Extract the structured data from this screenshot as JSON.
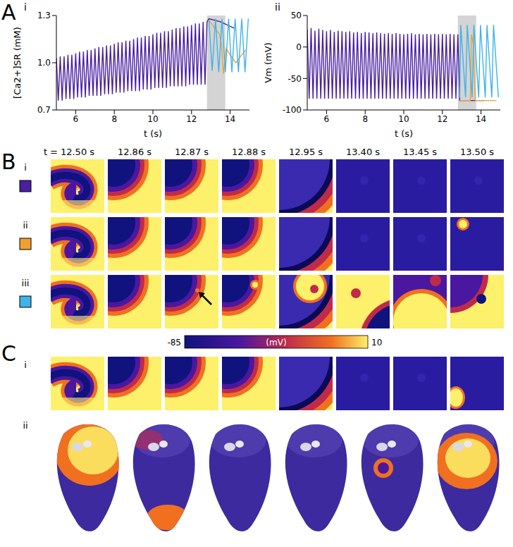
{
  "panel_letters": [
    "A",
    "B",
    "C"
  ],
  "chart_data": [
    {
      "label": "i",
      "type": "line",
      "xlabel": "t (s)",
      "ylabel": "[Ca2+]SR (mM)",
      "xlim": [
        5,
        15
      ],
      "xticks": [
        6,
        8,
        10,
        12,
        14
      ],
      "ylim": [
        0.7,
        1.3
      ],
      "yticks": [
        0.7,
        {
          "value": 1.0,
          "label": "1.0"
        },
        1.3
      ],
      "shaded_x": [
        12.8,
        13.75
      ],
      "series": [
        {
          "color": "#4a1fa0",
          "x": [
            5,
            5.1,
            5.2,
            5.3,
            5.4,
            5.5,
            5.6,
            5.7,
            5.8,
            5.9,
            6,
            6.1,
            6.2,
            6.3,
            6.4,
            6.5,
            6.6,
            6.7,
            6.8,
            6.9,
            7,
            7.1,
            7.2,
            7.3,
            7.4,
            7.5,
            7.6,
            7.7,
            7.8,
            7.9,
            8,
            8.1,
            8.2,
            8.3,
            8.4,
            8.5,
            8.6,
            8.7,
            8.8,
            8.9,
            9,
            9.1,
            9.2,
            9.3,
            9.4,
            9.5,
            9.6,
            9.7,
            9.8,
            9.9,
            10,
            10.1,
            10.2,
            10.3,
            10.4,
            10.5,
            10.6,
            10.7,
            10.8,
            10.9,
            11,
            11.1,
            11.2,
            11.3,
            11.4,
            11.5,
            11.6,
            11.7,
            11.8,
            11.9,
            12,
            12.1,
            12.2,
            12.3,
            12.4,
            12.5,
            12.6,
            12.7,
            12.8,
            12.9,
            13.5,
            14.2
          ],
          "values": [
            1.03,
            0.76,
            1.04,
            0.76,
            1.04,
            0.77,
            1.05,
            0.77,
            1.05,
            0.77,
            1.06,
            0.78,
            1.07,
            0.78,
            1.07,
            0.78,
            1.08,
            0.79,
            1.08,
            0.79,
            1.09,
            0.79,
            1.1,
            0.79,
            1.1,
            0.8,
            1.11,
            0.8,
            1.11,
            0.8,
            1.12,
            0.81,
            1.13,
            0.81,
            1.13,
            0.81,
            1.14,
            0.82,
            1.14,
            0.82,
            1.15,
            0.82,
            1.16,
            0.82,
            1.16,
            0.83,
            1.17,
            0.83,
            1.17,
            0.83,
            1.18,
            0.84,
            1.19,
            0.84,
            1.19,
            0.84,
            1.2,
            0.84,
            1.2,
            0.85,
            1.21,
            0.85,
            1.22,
            0.85,
            1.22,
            0.85,
            1.23,
            0.85,
            1.23,
            0.86,
            1.24,
            0.86,
            1.25,
            0.86,
            1.25,
            0.86,
            1.26,
            0.86,
            1.26,
            1.28,
            1.26,
            1.22
          ]
        },
        {
          "color": "#f0a030",
          "x": [
            12.9,
            13.2,
            13.45,
            13.55,
            13.65,
            13.72,
            13.8,
            14.0,
            14.3,
            14.6,
            14.8
          ],
          "values": [
            1.27,
            1.22,
            1.18,
            1.12,
            0.93,
            1.0,
            1.09,
            1.05,
            1.0,
            1.05,
            1.08
          ]
        },
        {
          "color": "#3fb4e8",
          "x": [
            12.9,
            13.07,
            13.24,
            13.41,
            13.58,
            13.75,
            13.92,
            14.09,
            14.26,
            14.43,
            14.6,
            14.77,
            14.94
          ],
          "values": [
            1.27,
            0.95,
            1.28,
            0.94,
            1.28,
            0.94,
            1.28,
            0.94,
            1.28,
            0.94,
            1.28,
            0.94,
            1.28
          ]
        }
      ]
    },
    {
      "label": "ii",
      "type": "line",
      "xlabel": "t (s)",
      "ylabel": "Vm (mV)",
      "xlim": [
        5,
        15
      ],
      "xticks": [
        6,
        8,
        10,
        12,
        14
      ],
      "ylim": [
        -100,
        50
      ],
      "yticks": [
        -100,
        -50,
        0,
        50
      ],
      "shaded_x": [
        12.8,
        13.75
      ],
      "series": [
        {
          "color": "#4a1fa0",
          "x": [
            5,
            5.1,
            5.2,
            5.3,
            5.4,
            5.5,
            5.6,
            5.7,
            5.8,
            5.9,
            6,
            6.1,
            6.2,
            6.3,
            6.4,
            6.5,
            6.6,
            6.7,
            6.8,
            6.9,
            7,
            7.1,
            7.2,
            7.3,
            7.4,
            7.5,
            7.6,
            7.7,
            7.8,
            7.9,
            8,
            8.1,
            8.2,
            8.3,
            8.4,
            8.5,
            8.6,
            8.7,
            8.8,
            8.9,
            9,
            9.1,
            9.2,
            9.3,
            9.4,
            9.5,
            9.6,
            9.7,
            9.8,
            9.9,
            10,
            10.1,
            10.2,
            10.3,
            10.4,
            10.5,
            10.6,
            10.7,
            10.8,
            10.9,
            11,
            11.1,
            11.2,
            11.3,
            11.4,
            11.5,
            11.6,
            11.7,
            11.8,
            11.9,
            12,
            12.1,
            12.2,
            12.3,
            12.4,
            12.5,
            12.6,
            12.7,
            12.8,
            12.9,
            13.5,
            14.2
          ],
          "values": [
            28,
            -82,
            30,
            -82,
            26,
            -82,
            29,
            -82,
            27,
            -82,
            25,
            -82,
            27,
            -82,
            24,
            -82,
            26,
            -82,
            25,
            -82,
            24,
            -82,
            25,
            -82,
            23,
            -82,
            24,
            -82,
            22,
            -82,
            24,
            -82,
            23,
            -82,
            22,
            -82,
            23,
            -82,
            22,
            -82,
            21,
            -82,
            22,
            -82,
            21,
            -82,
            22,
            -82,
            21,
            -82,
            20,
            -82,
            21,
            -82,
            22,
            -82,
            20,
            -82,
            21,
            -82,
            20,
            -82,
            21,
            -82,
            20,
            -82,
            21,
            -82,
            20,
            -82,
            21,
            -82,
            20,
            -82,
            21,
            -82,
            20,
            -82,
            20,
            -85,
            -85,
            -85
          ]
        },
        {
          "color": "#f0a030",
          "x": [
            12.9,
            13.45,
            13.5,
            13.6,
            13.7,
            14.8
          ],
          "values": [
            -85,
            -85,
            20,
            5,
            -85,
            -85
          ]
        },
        {
          "color": "#3fb4e8",
          "x": [
            12.9,
            12.95,
            13.2,
            13.29,
            13.54,
            13.63,
            13.88,
            13.97,
            14.22,
            14.31,
            14.56,
            14.65,
            14.9
          ],
          "values": [
            -80,
            35,
            -80,
            35,
            -80,
            35,
            -80,
            35,
            -80,
            35,
            -80,
            35,
            -80
          ]
        }
      ]
    }
  ],
  "panel_B": {
    "time_prefix": "t =",
    "times": [
      "12.50 s",
      "12.86 s",
      "12.87 s",
      "12.88 s",
      "12.95 s",
      "13.40 s",
      "13.45 s",
      "13.50 s"
    ],
    "rows": [
      {
        "label": "i",
        "color": "#4a1fa0"
      },
      {
        "label": "ii",
        "color": "#f0a030"
      },
      {
        "label": "iii",
        "color": "#3fb4e8"
      }
    ]
  },
  "panel_C": {
    "colorbar": {
      "range": [
        -85,
        10
      ],
      "ticks": [
        -85,
        10
      ],
      "label": "(mV)"
    },
    "rows": [
      {
        "label": "i"
      },
      {
        "label": "ii"
      }
    ]
  }
}
